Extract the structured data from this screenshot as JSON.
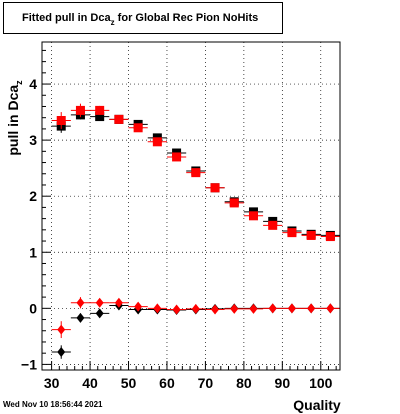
{
  "title": {
    "main": "Fitted pull in Dca",
    "sub": "z",
    "rest": " for Global Rec Pion NoHits"
  },
  "ylabel": {
    "main": "pull in Dca",
    "sub": "z"
  },
  "xlabel": "Quality",
  "footer": "Wed Nov 10 18:56:44 2021",
  "chart_data": {
    "type": "scatter",
    "xlim": [
      27.5,
      105
    ],
    "ylim": [
      -1.1,
      4.75
    ],
    "grid": true,
    "x_ticks": [
      30,
      40,
      50,
      60,
      70,
      80,
      90,
      100
    ],
    "y_ticks": [
      -1,
      0,
      1,
      2,
      3,
      4
    ],
    "series": [
      {
        "color": "#000000",
        "marker": "square",
        "x": [
          32.5,
          37.5,
          42.5,
          47.5,
          52.5,
          57.5,
          62.5,
          67.5,
          72.5,
          77.5,
          82.5,
          87.5,
          92.5,
          97.5,
          102.5
        ],
        "y": [
          3.25,
          3.45,
          3.42,
          3.37,
          3.28,
          3.04,
          2.77,
          2.45,
          2.15,
          1.9,
          1.72,
          1.55,
          1.38,
          1.32,
          1.3
        ],
        "yerr": [
          0.12,
          0.08,
          0.06,
          0.04,
          0.03,
          0.03,
          0.02,
          0.02,
          0.02,
          0.02,
          0.02,
          0.02,
          0.02,
          0.02,
          0.02
        ]
      },
      {
        "color": "#ff0000",
        "marker": "square",
        "x": [
          32.5,
          37.5,
          42.5,
          47.5,
          52.5,
          57.5,
          62.5,
          67.5,
          72.5,
          77.5,
          82.5,
          87.5,
          92.5,
          97.5,
          102.5
        ],
        "y": [
          3.35,
          3.53,
          3.53,
          3.37,
          3.22,
          2.97,
          2.7,
          2.42,
          2.15,
          1.88,
          1.65,
          1.48,
          1.35,
          1.3,
          1.28
        ],
        "yerr": [
          0.15,
          0.12,
          0.08,
          0.06,
          0.04,
          0.03,
          0.03,
          0.02,
          0.02,
          0.02,
          0.02,
          0.02,
          0.02,
          0.02,
          0.02
        ]
      },
      {
        "color": "#000000",
        "marker": "diamond",
        "x": [
          32.5,
          37.5,
          42.5,
          47.5,
          52.5,
          57.5,
          62.5,
          67.5,
          72.5,
          77.5,
          82.5,
          87.5,
          92.5,
          97.5,
          102.5
        ],
        "y": [
          -0.78,
          -0.17,
          -0.09,
          0.05,
          -0.02,
          -0.02,
          -0.03,
          -0.02,
          -0.01,
          0.0,
          0.0,
          0.0,
          0.0,
          0.0,
          0.0
        ],
        "yerr": [
          0.12,
          0.08,
          0.05,
          0.04,
          0.03,
          0.02,
          0.02,
          0.02,
          0.02,
          0.02,
          0.02,
          0.02,
          0.02,
          0.02,
          0.02
        ]
      },
      {
        "color": "#ff0000",
        "marker": "diamond",
        "x": [
          32.5,
          37.5,
          42.5,
          47.5,
          52.5,
          57.5,
          62.5,
          67.5,
          72.5,
          77.5,
          82.5,
          87.5,
          92.5,
          97.5,
          102.5
        ],
        "y": [
          -0.38,
          0.1,
          0.1,
          0.1,
          0.03,
          0.0,
          -0.02,
          -0.01,
          -0.02,
          -0.01,
          -0.01,
          0.0,
          0.0,
          0.0,
          0.0
        ],
        "yerr": [
          0.15,
          0.1,
          0.06,
          0.05,
          0.04,
          0.03,
          0.02,
          0.02,
          0.02,
          0.02,
          0.02,
          0.02,
          0.02,
          0.02,
          0.02
        ]
      }
    ]
  }
}
